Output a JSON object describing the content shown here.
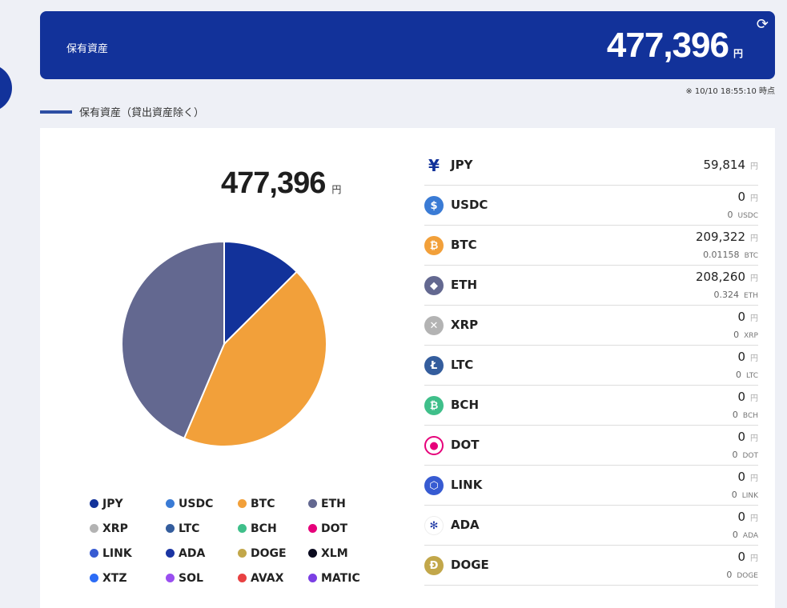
{
  "header": {
    "label": "保有資産",
    "amount": "477,396",
    "unit": "円",
    "timestamp": "※ 10/10 18:55:10 時点"
  },
  "section_title": "保有資産（貸出資産除く）",
  "panel": {
    "total": "477,396",
    "unit": "円"
  },
  "colors": {
    "JPY": "#12329a",
    "USDC": "#3a7bd5",
    "BTC": "#f2a03a",
    "ETH": "#636890",
    "XRP": "#b3b3b3",
    "LTC": "#345d9d",
    "BCH": "#3fbf8a",
    "DOT": "#e6007a",
    "LINK": "#375bd2",
    "ADA": "#1b35a3",
    "DOGE": "#c2a74a",
    "XLM": "#0a0a1e",
    "XTZ": "#2c6cf6",
    "SOL": "#9a4ff0",
    "AVAX": "#e84142",
    "MATIC": "#7b3fe4"
  },
  "chart_data": {
    "type": "pie",
    "categories": [
      "JPY",
      "BTC",
      "ETH"
    ],
    "values": [
      59814,
      209322,
      208260
    ],
    "unit": "円",
    "legend": [
      "JPY",
      "USDC",
      "BTC",
      "ETH",
      "XRP",
      "LTC",
      "BCH",
      "DOT",
      "LINK",
      "ADA",
      "DOGE",
      "XLM",
      "XTZ",
      "SOL",
      "AVAX",
      "MATIC"
    ],
    "legend_position": "bottom"
  },
  "assets": [
    {
      "name": "JPY",
      "icon": "yen-icon",
      "glyph": "¥",
      "value": "59,814",
      "unit": "円"
    },
    {
      "name": "USDC",
      "icon": "usdc-icon",
      "glyph": "$",
      "value": "0",
      "unit": "円",
      "amount": "0",
      "symbol": "USDC"
    },
    {
      "name": "BTC",
      "icon": "bitcoin-icon",
      "glyph": "₿",
      "value": "209,322",
      "unit": "円",
      "amount": "0.01158",
      "symbol": "BTC"
    },
    {
      "name": "ETH",
      "icon": "ethereum-icon",
      "glyph": "◆",
      "value": "208,260",
      "unit": "円",
      "amount": "0.324",
      "symbol": "ETH"
    },
    {
      "name": "XRP",
      "icon": "xrp-icon",
      "glyph": "✕",
      "value": "0",
      "unit": "円",
      "amount": "0",
      "symbol": "XRP"
    },
    {
      "name": "LTC",
      "icon": "litecoin-icon",
      "glyph": "Ł",
      "value": "0",
      "unit": "円",
      "amount": "0",
      "symbol": "LTC"
    },
    {
      "name": "BCH",
      "icon": "bitcoin-cash-icon",
      "glyph": "₿",
      "value": "0",
      "unit": "円",
      "amount": "0",
      "symbol": "BCH"
    },
    {
      "name": "DOT",
      "icon": "polkadot-icon",
      "glyph": "●",
      "value": "0",
      "unit": "円",
      "amount": "0",
      "symbol": "DOT"
    },
    {
      "name": "LINK",
      "icon": "chainlink-icon",
      "glyph": "⬡",
      "value": "0",
      "unit": "円",
      "amount": "0",
      "symbol": "LINK"
    },
    {
      "name": "ADA",
      "icon": "cardano-icon",
      "glyph": "✻",
      "value": "0",
      "unit": "円",
      "amount": "0",
      "symbol": "ADA"
    },
    {
      "name": "DOGE",
      "icon": "dogecoin-icon",
      "glyph": "Ð",
      "value": "0",
      "unit": "円",
      "amount": "0",
      "symbol": "DOGE"
    }
  ]
}
